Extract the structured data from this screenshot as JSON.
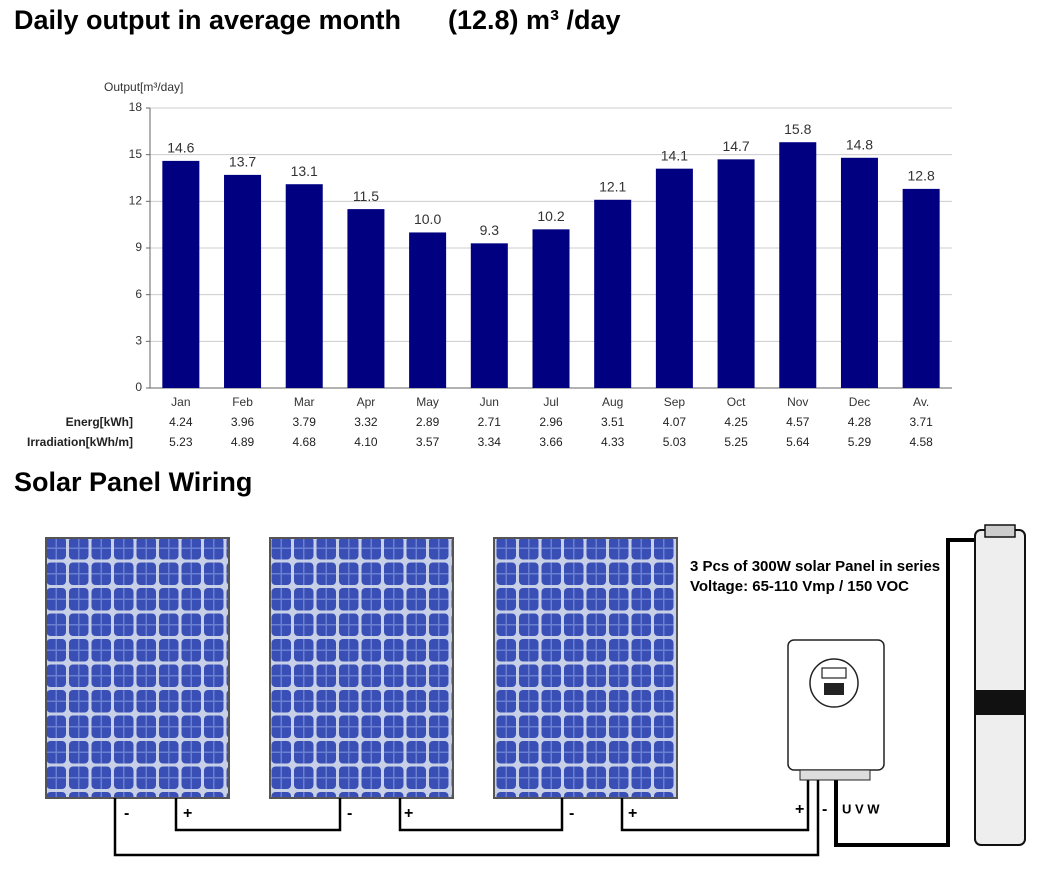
{
  "header": {
    "title": "Daily output in average month",
    "subtitle": "(12.8) m³ /day"
  },
  "chart_data": {
    "type": "bar",
    "y_label": "Output[m³/day]",
    "categories": [
      "Jan",
      "Feb",
      "Mar",
      "Apr",
      "May",
      "Jun",
      "Jul",
      "Aug",
      "Sep",
      "Oct",
      "Nov",
      "Dec",
      "Av."
    ],
    "values": [
      14.6,
      13.7,
      13.1,
      11.5,
      10.0,
      9.3,
      10.2,
      12.1,
      14.1,
      14.7,
      15.8,
      14.8,
      12.8
    ],
    "value_labels": [
      "14.6",
      "13.7",
      "13.1",
      "11.5",
      "10.0",
      "9.3",
      "10.2",
      "12.1",
      "14.1",
      "14.7",
      "15.8",
      "14.8",
      "12.8"
    ],
    "color": "#000080",
    "ylim": [
      0,
      18
    ],
    "yticks": [
      0,
      3,
      6,
      9,
      12,
      15,
      18
    ],
    "grid": true
  },
  "table": {
    "rows": [
      {
        "label": "Energ[kWh]",
        "values": [
          "4.24",
          "3.96",
          "3.79",
          "3.32",
          "2.89",
          "2.71",
          "2.96",
          "3.51",
          "4.07",
          "4.25",
          "4.57",
          "4.28",
          "3.71"
        ]
      },
      {
        "label": "Irradiation[kWh/m]",
        "values": [
          "5.23",
          "4.89",
          "4.68",
          "4.10",
          "3.57",
          "3.34",
          "3.66",
          "4.33",
          "5.03",
          "5.25",
          "5.64",
          "5.29",
          "4.58"
        ]
      }
    ]
  },
  "wiring": {
    "title": "Solar Panel Wiring",
    "note_lines": [
      "3 Pcs of 300W solar Panel in series",
      "Voltage:  65-110 Vmp / 150 VOC"
    ],
    "terminals": [
      "-",
      "+",
      "-",
      "+",
      "-",
      "+",
      "+",
      "-"
    ],
    "motor_terminals": "U V W"
  }
}
